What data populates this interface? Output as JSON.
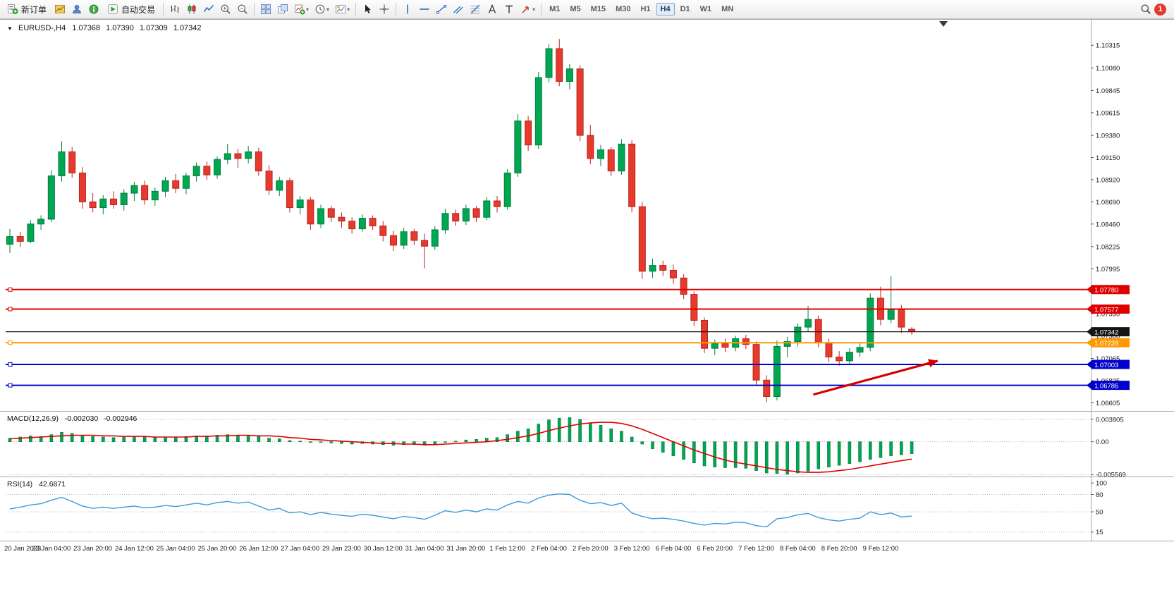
{
  "toolbar": {
    "new_order": "新订单",
    "auto_trading": "自动交易",
    "timeframes": [
      "M1",
      "M5",
      "M15",
      "M30",
      "H1",
      "H4",
      "D1",
      "W1",
      "MN"
    ],
    "active_timeframe": "H4",
    "notification_count": "1"
  },
  "chart_header": {
    "symbol_period": "EURUSD-,H4",
    "open": "1.07368",
    "high": "1.07390",
    "low": "1.07309",
    "close": "1.07342"
  },
  "price_axis": {
    "labels": [
      "1.10315",
      "1.10080",
      "1.09845",
      "1.09615",
      "1.09380",
      "1.09150",
      "1.08920",
      "1.08690",
      "1.08460",
      "1.08225",
      "1.07995",
      "1.07765",
      "1.07530",
      "1.07300",
      "1.07065",
      "1.06835",
      "1.06605"
    ]
  },
  "levels": {
    "current_price": {
      "price": 1.07342,
      "label": "1.07342",
      "color": "#141414"
    },
    "lines": [
      {
        "price": 1.0778,
        "label": "1.07780",
        "color": "#E00000"
      },
      {
        "price": 1.07577,
        "label": "1.07577",
        "color": "#E00000"
      },
      {
        "price": 1.07228,
        "label": "1.07228",
        "color": "#FF9900"
      },
      {
        "price": 1.07003,
        "label": "1.07003",
        "color": "#0000CC"
      },
      {
        "price": 1.06786,
        "label": "1.06786",
        "color": "#0000CC"
      }
    ]
  },
  "trend_arrow": {
    "from_index": 77.5,
    "from_price": 1.0669,
    "to_index": 89.5,
    "to_price": 1.0704,
    "color": "#D40000"
  },
  "chart_data": {
    "type": "candlestick",
    "symbol": "EURUSD-",
    "period": "H4",
    "price_range": [
      1.0652,
      1.1058
    ],
    "slots": 104,
    "candles": [
      [
        1.0825,
        1.0841,
        1.0816,
        1.0833
      ],
      [
        1.0833,
        1.0838,
        1.0822,
        1.0828
      ],
      [
        1.0828,
        1.085,
        1.0826,
        1.0846
      ],
      [
        1.0846,
        1.0855,
        1.084,
        1.0851
      ],
      [
        1.0851,
        1.0902,
        1.0848,
        1.0896
      ],
      [
        1.0896,
        1.0932,
        1.089,
        1.0921
      ],
      [
        1.0921,
        1.0926,
        1.0894,
        1.0899
      ],
      [
        1.0899,
        1.0905,
        1.0862,
        1.0869
      ],
      [
        1.0869,
        1.0878,
        1.0858,
        1.0863
      ],
      [
        1.0863,
        1.0876,
        1.0856,
        1.0872
      ],
      [
        1.0872,
        1.088,
        1.0862,
        1.0866
      ],
      [
        1.0866,
        1.0882,
        1.086,
        1.0878
      ],
      [
        1.0878,
        1.089,
        1.087,
        1.0886
      ],
      [
        1.0886,
        1.0891,
        1.0866,
        1.0871
      ],
      [
        1.0871,
        1.0884,
        1.0865,
        1.088
      ],
      [
        1.088,
        1.0895,
        1.0874,
        1.0891
      ],
      [
        1.0891,
        1.0898,
        1.0878,
        1.0883
      ],
      [
        1.0883,
        1.0899,
        1.0877,
        1.0896
      ],
      [
        1.0896,
        1.091,
        1.089,
        1.0906
      ],
      [
        1.0906,
        1.0911,
        1.0892,
        1.0897
      ],
      [
        1.0897,
        1.0916,
        1.0893,
        1.0913
      ],
      [
        1.0913,
        1.0929,
        1.0908,
        1.0919
      ],
      [
        1.0919,
        1.0924,
        1.0904,
        1.0914
      ],
      [
        1.0914,
        1.0927,
        1.0909,
        1.0921
      ],
      [
        1.0921,
        1.0925,
        1.0896,
        1.0901
      ],
      [
        1.0901,
        1.0907,
        1.0876,
        1.0881
      ],
      [
        1.0881,
        1.0895,
        1.0875,
        1.0891
      ],
      [
        1.0891,
        1.0894,
        1.0858,
        1.0863
      ],
      [
        1.0863,
        1.0875,
        1.0856,
        1.0871
      ],
      [
        1.0871,
        1.0874,
        1.084,
        1.0846
      ],
      [
        1.0846,
        1.0866,
        1.0842,
        1.0862
      ],
      [
        1.0862,
        1.0865,
        1.0848,
        1.0853
      ],
      [
        1.0853,
        1.0858,
        1.0842,
        1.0849
      ],
      [
        1.0849,
        1.0853,
        1.0836,
        1.0841
      ],
      [
        1.0841,
        1.0856,
        1.0838,
        1.0852
      ],
      [
        1.0852,
        1.0855,
        1.084,
        1.0844
      ],
      [
        1.0844,
        1.0849,
        1.0828,
        1.0834
      ],
      [
        1.0834,
        1.0839,
        1.0818,
        1.0824
      ],
      [
        1.0824,
        1.0842,
        1.082,
        1.0838
      ],
      [
        1.0838,
        1.0841,
        1.0824,
        1.0829
      ],
      [
        1.0829,
        1.0836,
        1.08,
        1.0823
      ],
      [
        1.0823,
        1.0844,
        1.0819,
        1.084
      ],
      [
        1.084,
        1.0862,
        1.0836,
        1.0857
      ],
      [
        1.0857,
        1.0861,
        1.0844,
        1.0849
      ],
      [
        1.0849,
        1.0866,
        1.0845,
        1.0862
      ],
      [
        1.0862,
        1.0865,
        1.0848,
        1.0853
      ],
      [
        1.0853,
        1.0874,
        1.085,
        1.087
      ],
      [
        1.087,
        1.0875,
        1.0858,
        1.0864
      ],
      [
        1.0864,
        1.0903,
        1.0861,
        1.0899
      ],
      [
        1.0899,
        1.096,
        1.0895,
        1.0953
      ],
      [
        1.0953,
        1.0958,
        1.0922,
        1.0928
      ],
      [
        1.0928,
        1.1004,
        1.0924,
        1.0998
      ],
      [
        1.0998,
        1.1033,
        1.0993,
        1.1028
      ],
      [
        1.1028,
        1.1038,
        1.0989,
        1.0994
      ],
      [
        1.0994,
        1.1012,
        1.0986,
        1.1007
      ],
      [
        1.1007,
        1.1011,
        1.0932,
        1.0938
      ],
      [
        1.0938,
        1.0949,
        1.0908,
        1.0914
      ],
      [
        1.0914,
        1.0928,
        1.0906,
        1.0923
      ],
      [
        1.0923,
        1.0926,
        1.0896,
        1.0901
      ],
      [
        1.0901,
        1.0934,
        1.0897,
        1.0929
      ],
      [
        1.0929,
        1.0933,
        1.0858,
        1.0864
      ],
      [
        1.0864,
        1.0869,
        1.0789,
        1.0797
      ],
      [
        1.0797,
        1.081,
        1.079,
        1.0803
      ],
      [
        1.0803,
        1.0808,
        1.0792,
        1.0798
      ],
      [
        1.0798,
        1.0804,
        1.0784,
        1.079
      ],
      [
        1.079,
        1.0794,
        1.0768,
        1.0773
      ],
      [
        1.0773,
        1.0776,
        1.074,
        1.0746
      ],
      [
        1.0746,
        1.0749,
        1.0712,
        1.0717
      ],
      [
        1.0717,
        1.0726,
        1.071,
        1.0722
      ],
      [
        1.0722,
        1.0727,
        1.0713,
        1.0718
      ],
      [
        1.0718,
        1.073,
        1.0714,
        1.0727
      ],
      [
        1.0727,
        1.0731,
        1.0716,
        1.0721
      ],
      [
        1.0721,
        1.0724,
        1.0678,
        1.0684
      ],
      [
        1.0684,
        1.0689,
        1.0661,
        1.0667
      ],
      [
        1.0667,
        1.0725,
        1.0663,
        1.0719
      ],
      [
        1.0719,
        1.0729,
        1.0708,
        1.0724
      ],
      [
        1.0724,
        1.0743,
        1.0719,
        1.0739
      ],
      [
        1.0739,
        1.0761,
        1.0734,
        1.0747
      ],
      [
        1.0747,
        1.0751,
        1.0718,
        1.0723
      ],
      [
        1.0723,
        1.0727,
        1.0703,
        1.0708
      ],
      [
        1.0708,
        1.0714,
        1.0699,
        1.0704
      ],
      [
        1.0704,
        1.0717,
        1.07,
        1.0713
      ],
      [
        1.0713,
        1.0722,
        1.0708,
        1.0718
      ],
      [
        1.0718,
        1.0774,
        1.0714,
        1.0769
      ],
      [
        1.0769,
        1.0781,
        1.0741,
        1.0747
      ],
      [
        1.0747,
        1.0792,
        1.0743,
        1.0758
      ],
      [
        1.0758,
        1.0762,
        1.0733,
        1.0739
      ],
      [
        1.07368,
        1.0739,
        1.07309,
        1.07342
      ]
    ],
    "x_labels": [
      {
        "i": 0,
        "t": "20 Jan 2023"
      },
      {
        "i": 4,
        "t": "23 Jan 04:00"
      },
      {
        "i": 8,
        "t": "23 Jan 20:00"
      },
      {
        "i": 12,
        "t": "24 Jan 12:00"
      },
      {
        "i": 16,
        "t": "25 Jan 04:00"
      },
      {
        "i": 20,
        "t": "25 Jan 20:00"
      },
      {
        "i": 24,
        "t": "26 Jan 12:00"
      },
      {
        "i": 28,
        "t": "27 Jan 04:00"
      },
      {
        "i": 32,
        "t": "29 Jan 23:00"
      },
      {
        "i": 36,
        "t": "30 Jan 12:00"
      },
      {
        "i": 40,
        "t": "31 Jan 04:00"
      },
      {
        "i": 44,
        "t": "31 Jan 20:00"
      },
      {
        "i": 48,
        "t": "1 Feb 12:00"
      },
      {
        "i": 52,
        "t": "2 Feb 04:00"
      },
      {
        "i": 56,
        "t": "2 Feb 20:00"
      },
      {
        "i": 60,
        "t": "3 Feb 12:00"
      },
      {
        "i": 64,
        "t": "6 Feb 04:00"
      },
      {
        "i": 68,
        "t": "6 Feb 20:00"
      },
      {
        "i": 72,
        "t": "7 Feb 12:00"
      },
      {
        "i": 76,
        "t": "8 Feb 04:00"
      },
      {
        "i": 80,
        "t": "8 Feb 20:00"
      },
      {
        "i": 84,
        "t": "9 Feb 12:00"
      }
    ]
  },
  "macd": {
    "name": "MACD(12,26,9)",
    "value_main": "-0.002030",
    "value_signal": "-0.002946",
    "axis_labels": [
      "0.003805",
      "0.00",
      "-0.005569"
    ],
    "range": [
      -0.0059,
      0.0051
    ],
    "histogram": [
      0.0006,
      0.0008,
      0.001,
      0.0009,
      0.0012,
      0.0016,
      0.0014,
      0.0011,
      0.0009,
      0.0008,
      0.0007,
      0.0008,
      0.0009,
      0.0008,
      0.0007,
      0.0008,
      0.0008,
      0.0009,
      0.001,
      0.001,
      0.0011,
      0.0012,
      0.0011,
      0.0011,
      0.0009,
      0.0006,
      0.0005,
      0.0002,
      0.0001,
      -0.0001,
      -0.0001,
      -0.0002,
      -0.0003,
      -0.0004,
      -0.0003,
      -0.0004,
      -0.0005,
      -0.0006,
      -0.0005,
      -0.0005,
      -0.0006,
      -0.0004,
      -0.0001,
      0.0001,
      0.0003,
      0.0004,
      0.0006,
      0.0007,
      0.0012,
      0.0018,
      0.0022,
      0.003,
      0.0037,
      0.004,
      0.0041,
      0.0038,
      0.0032,
      0.0028,
      0.0022,
      0.0018,
      0.0008,
      -0.0004,
      -0.0012,
      -0.0018,
      -0.0024,
      -0.003,
      -0.0036,
      -0.0041,
      -0.0043,
      -0.0044,
      -0.0044,
      -0.0045,
      -0.0049,
      -0.0053,
      -0.0054,
      -0.0055,
      -0.0053,
      -0.005,
      -0.0046,
      -0.0043,
      -0.004,
      -0.0037,
      -0.0034,
      -0.003,
      -0.0027,
      -0.0024,
      -0.0022,
      -0.00203
    ],
    "signal": [
      0.0005,
      0.0006,
      0.0007,
      0.0008,
      0.0009,
      0.001,
      0.0011,
      0.0011,
      0.0011,
      0.001,
      0.001,
      0.0009,
      0.0009,
      0.0009,
      0.0008,
      0.0008,
      0.0008,
      0.0008,
      0.0009,
      0.0009,
      0.001,
      0.001,
      0.0011,
      0.0011,
      0.001,
      0.001,
      0.0009,
      0.0007,
      0.0006,
      0.0004,
      0.0003,
      0.0002,
      0.0001,
      0.0,
      -0.0001,
      -0.0002,
      -0.0003,
      -0.0003,
      -0.0004,
      -0.0004,
      -0.0005,
      -0.0005,
      -0.0004,
      -0.0003,
      -0.0002,
      -0.0001,
      0.0,
      0.0002,
      0.0004,
      0.0007,
      0.001,
      0.0014,
      0.0019,
      0.0023,
      0.0027,
      0.003,
      0.0032,
      0.0033,
      0.0033,
      0.0031,
      0.0027,
      0.0021,
      0.0014,
      0.0007,
      0.0,
      -0.0007,
      -0.0014,
      -0.002,
      -0.0026,
      -0.0031,
      -0.0035,
      -0.0038,
      -0.0041,
      -0.0044,
      -0.0047,
      -0.0049,
      -0.0051,
      -0.0052,
      -0.0052,
      -0.0051,
      -0.0049,
      -0.0047,
      -0.0044,
      -0.0041,
      -0.0038,
      -0.0035,
      -0.0032,
      -0.002946
    ]
  },
  "rsi": {
    "name": "RSI(14)",
    "value": "42.6871",
    "axis_labels": [
      "100",
      "80",
      "50",
      "15"
    ],
    "levels": [
      80,
      50,
      15
    ],
    "range": [
      0,
      110
    ],
    "values": [
      55,
      58,
      62,
      64,
      70,
      75,
      68,
      60,
      56,
      58,
      56,
      58,
      60,
      57,
      58,
      61,
      59,
      62,
      65,
      62,
      66,
      68,
      65,
      67,
      60,
      53,
      56,
      48,
      50,
      45,
      49,
      46,
      44,
      42,
      46,
      44,
      41,
      38,
      42,
      40,
      37,
      44,
      52,
      49,
      53,
      50,
      55,
      53,
      62,
      68,
      65,
      74,
      79,
      81,
      80,
      70,
      64,
      66,
      61,
      65,
      48,
      42,
      38,
      39,
      37,
      34,
      30,
      27,
      30,
      29,
      32,
      31,
      26,
      24,
      38,
      40,
      45,
      47,
      40,
      36,
      34,
      37,
      39,
      50,
      45,
      48,
      41,
      42.6871
    ]
  },
  "colors": {
    "bull_fill": "#00A651",
    "bull_stroke": "#00803E",
    "bear_fill": "#E8392D",
    "bear_stroke": "#B3281F",
    "macd_bar": "#00A651",
    "macd_bar_stroke": "#00793B",
    "macd_signal": "#E00000",
    "rsi_line": "#3E9BD8",
    "axis_text": "#1A1A1A",
    "separator": "#A8A8A8"
  }
}
